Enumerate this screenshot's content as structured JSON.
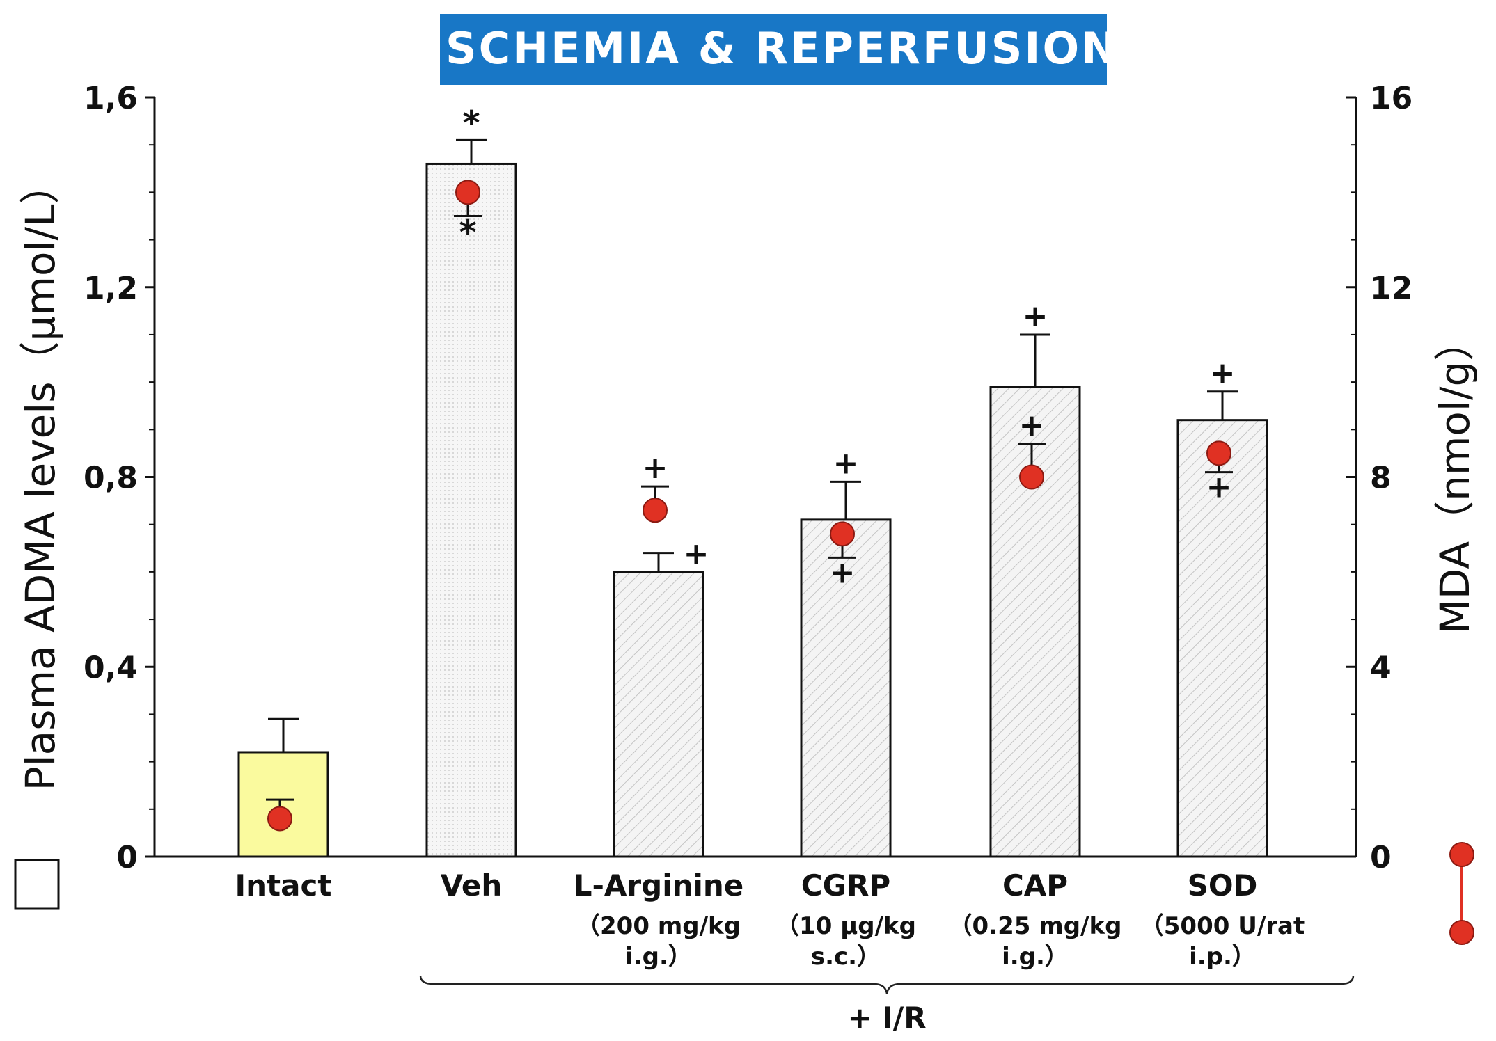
{
  "chart_data": {
    "type": "bar",
    "title": "ISCHEMIA & REPERFUSION",
    "title_bg_color": "#1877c6",
    "title_text_color": "#ffffff",
    "ylabel_left": "Plasma ADMA levels（μmol/L）",
    "ylabel_right": "MDA（nmol/g）",
    "ylim_left": [
      0,
      1.6
    ],
    "ylim_right": [
      0,
      16
    ],
    "yticks_left": [
      "0",
      "0,4",
      "0,8",
      "1,2",
      "1,6"
    ],
    "yticks_right": [
      "0",
      "4",
      "8",
      "12",
      "16"
    ],
    "group_label": "+ I/R",
    "categories": [
      {
        "name": "Intact",
        "dose1": "",
        "dose2": ""
      },
      {
        "name": "Veh",
        "dose1": "",
        "dose2": ""
      },
      {
        "name": "L-Arginine",
        "dose1": "（200 mg/kg",
        "dose2": "i.g.）"
      },
      {
        "name": "CGRP",
        "dose1": "（10 μg/kg",
        "dose2": "s.c.）"
      },
      {
        "name": "CAP",
        "dose1": "（0.25 mg/kg",
        "dose2": "i.g.）"
      },
      {
        "name": "SOD",
        "dose1": "（5000 U/rat",
        "dose2": "i.p.）"
      }
    ],
    "series": [
      {
        "name": "Plasma ADMA",
        "style": "bar",
        "values": [
          0.22,
          1.46,
          0.6,
          0.71,
          0.99,
          0.92
        ],
        "errors": [
          0.07,
          0.05,
          0.04,
          0.08,
          0.11,
          0.06
        ],
        "marks": [
          "",
          "*",
          "+",
          "+",
          "+",
          "+"
        ],
        "intact_color": "#fafa9e",
        "treated_color": "#f4f4f4"
      },
      {
        "name": "MDA",
        "style": "point",
        "values": [
          0.8,
          14.0,
          7.3,
          6.8,
          8.0,
          8.5
        ],
        "errors": [
          0.4,
          0.5,
          0.5,
          0.5,
          0.7,
          0.4
        ],
        "error_dir": [
          "up",
          "down",
          "up",
          "down",
          "up",
          "down"
        ],
        "marks": [
          "",
          "*",
          "+",
          "+",
          "+",
          "+"
        ],
        "color": "#e03123"
      }
    ]
  }
}
